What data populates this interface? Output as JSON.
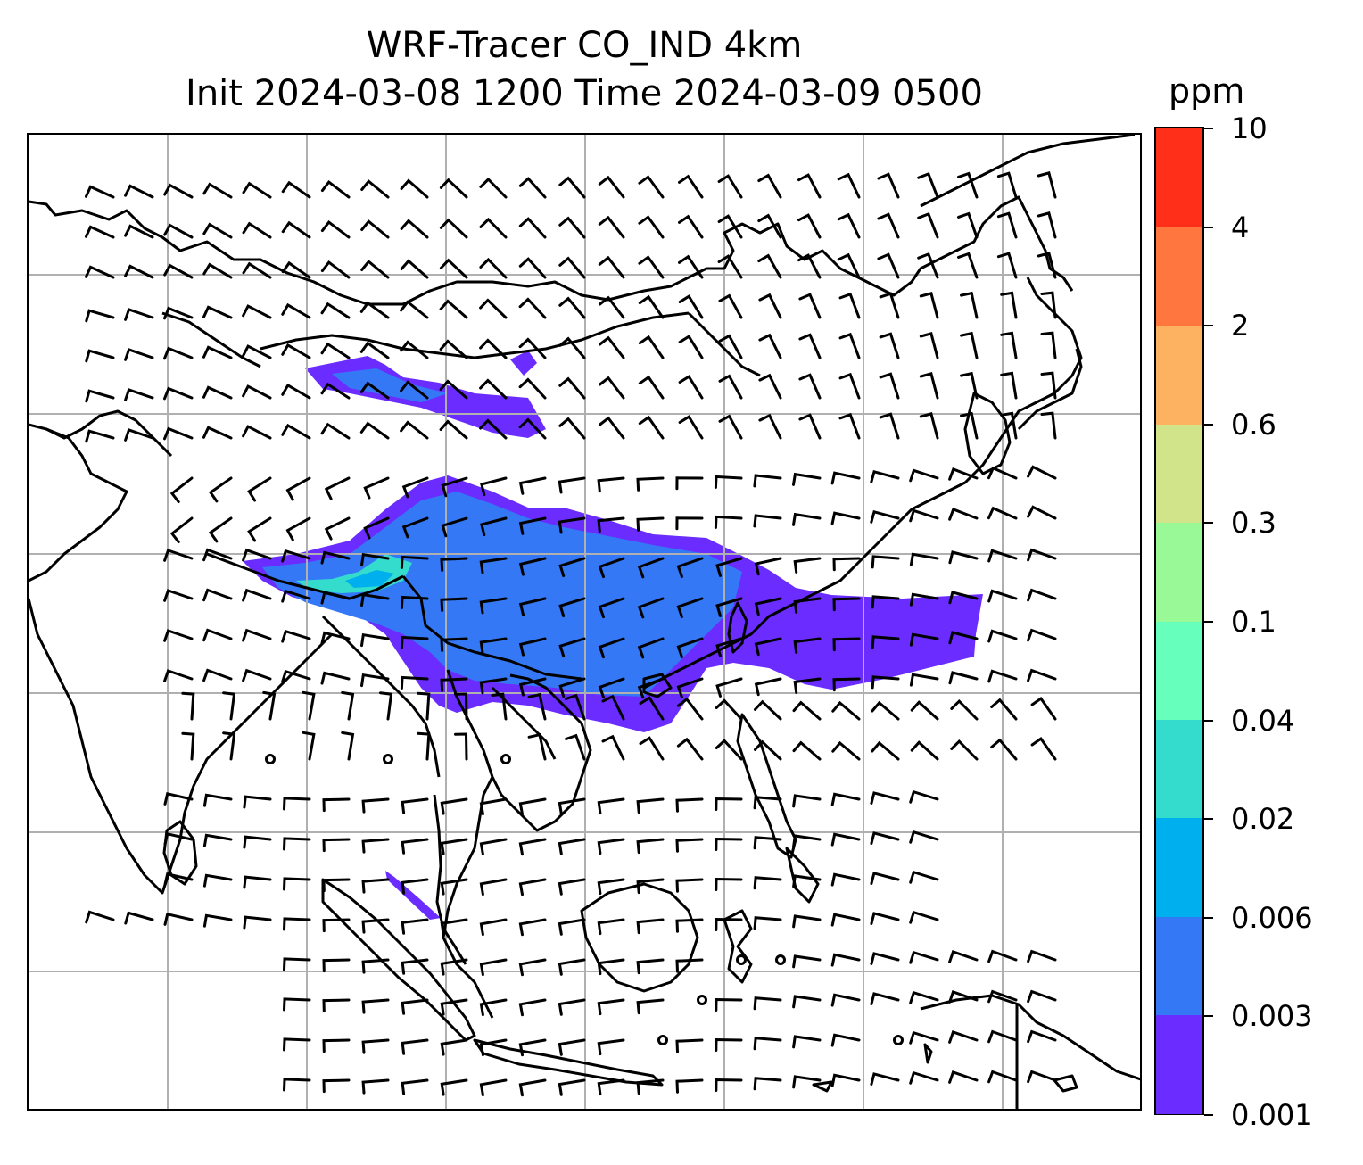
{
  "title": {
    "line1": "WRF-Tracer CO_IND 4km",
    "line2": "Init 2024-03-08 1200 Time 2024-03-09 0500"
  },
  "colorbar": {
    "unit": "ppm",
    "levels": [
      "0.001",
      "0.003",
      "0.006",
      "0.02",
      "0.04",
      "0.1",
      "0.3",
      "0.6",
      "2",
      "4",
      "10"
    ],
    "colors": [
      "#6a2cff",
      "#3478f6",
      "#00b0ee",
      "#33dccc",
      "#66ffbb",
      "#99f996",
      "#d2e48a",
      "#fdb262",
      "#ff773f",
      "#ff2f1a"
    ]
  },
  "map": {
    "field": "CO_IND tracer concentration",
    "gridlines": true,
    "wind_barbs": true,
    "coastlines": true,
    "borders": true
  }
}
